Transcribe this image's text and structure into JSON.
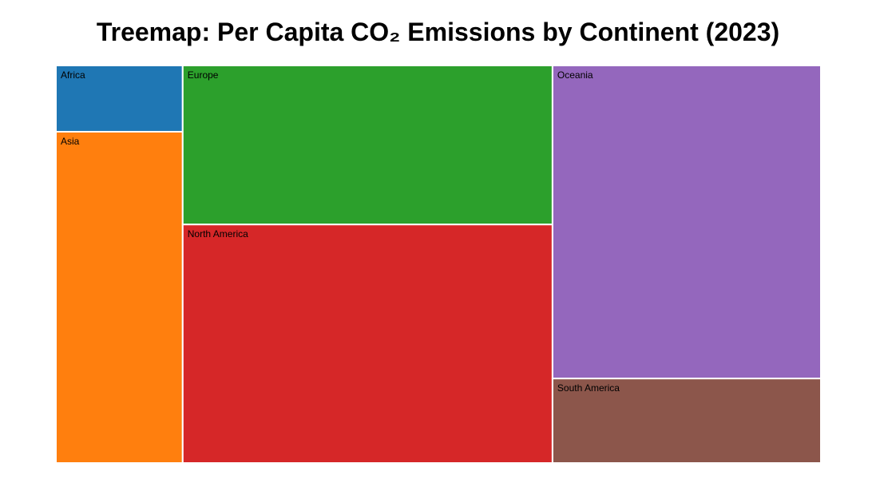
{
  "chart_data": {
    "type": "treemap",
    "title": "Treemap: Per Capita CO₂ Emissions by Continent (2023)",
    "items": [
      {
        "label": "Africa",
        "value": 1.0,
        "color": "#1f77b4"
      },
      {
        "label": "Asia",
        "value": 5.0,
        "color": "#ff7f0e"
      },
      {
        "label": "Europe",
        "value": 7.0,
        "color": "#2ca02c"
      },
      {
        "label": "North America",
        "value": 10.5,
        "color": "#d62728"
      },
      {
        "label": "Oceania",
        "value": 10.0,
        "color": "#9467bd"
      },
      {
        "label": "South America",
        "value": 2.7,
        "color": "#8c564b"
      }
    ]
  }
}
